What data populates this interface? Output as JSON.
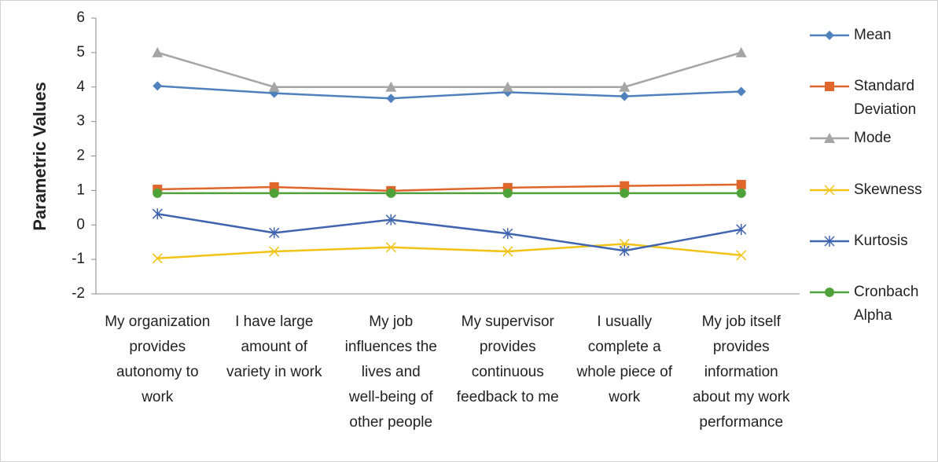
{
  "chart_data": {
    "type": "line",
    "y_label": "Parametric Values",
    "categories": [
      "My organization provides autonomy to work",
      "I have large amount of variety in work",
      "My job influences the lives and well-being of other people",
      "My supervisor provides continuous feedback to me",
      "I usually complete a whole piece of work",
      "My job itself provides information about my work performance"
    ],
    "series": [
      {
        "name": "Mean",
        "color": "#4f81bd",
        "marker": "diamond",
        "values": [
          4.03,
          3.82,
          3.67,
          3.85,
          3.73,
          3.87
        ]
      },
      {
        "name": "Standard Deviation",
        "color": "#e0652b",
        "marker": "square",
        "values": [
          1.03,
          1.1,
          0.99,
          1.08,
          1.13,
          1.17
        ]
      },
      {
        "name": "Mode",
        "color": "#a5a5a5",
        "marker": "triangle",
        "values": [
          5,
          4,
          4,
          4,
          4,
          5
        ]
      },
      {
        "name": "Skewness",
        "color": "#f2c314",
        "marker": "x",
        "values": [
          -0.97,
          -0.77,
          -0.65,
          -0.77,
          -0.55,
          -0.88
        ]
      },
      {
        "name": "Kurtosis",
        "color": "#3f64b0",
        "marker": "star",
        "values": [
          0.32,
          -0.23,
          0.15,
          -0.25,
          -0.75,
          -0.13
        ]
      },
      {
        "name": "Cronbach Alpha",
        "color": "#4fa23a",
        "marker": "circle",
        "values": [
          0.92,
          0.92,
          0.92,
          0.92,
          0.92,
          0.92
        ]
      }
    ],
    "ylim": [
      -2,
      6
    ],
    "yticks": [
      -2,
      -1,
      0,
      1,
      2,
      3,
      4,
      5,
      6
    ],
    "grid": false,
    "legend": "right"
  }
}
